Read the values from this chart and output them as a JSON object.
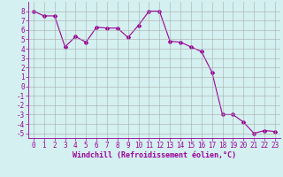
{
  "x": [
    0,
    1,
    2,
    3,
    4,
    5,
    6,
    7,
    8,
    9,
    10,
    11,
    12,
    13,
    14,
    15,
    16,
    17,
    18,
    19,
    20,
    21,
    22,
    23
  ],
  "y": [
    8.0,
    7.5,
    7.5,
    4.2,
    5.3,
    4.7,
    6.3,
    6.2,
    6.2,
    5.2,
    6.5,
    8.0,
    8.0,
    4.8,
    4.7,
    4.2,
    3.7,
    1.5,
    -3.0,
    -3.0,
    -3.8,
    -5.0,
    -4.7,
    -4.8
  ],
  "line_color": "#990099",
  "marker": "D",
  "marker_size": 2,
  "bg_color": "#d4f0f0",
  "grid_color": "#aaaaaa",
  "xlabel": "Windchill (Refroidissement éolien,°C)",
  "xlabel_fontsize": 6.0,
  "tick_fontsize": 5.5,
  "ylim": [
    -5.5,
    9.0
  ],
  "xlim": [
    -0.5,
    23.5
  ],
  "yticks": [
    -5,
    -4,
    -3,
    -2,
    -1,
    0,
    1,
    2,
    3,
    4,
    5,
    6,
    7,
    8
  ],
  "xticks": [
    0,
    1,
    2,
    3,
    4,
    5,
    6,
    7,
    8,
    9,
    10,
    11,
    12,
    13,
    14,
    15,
    16,
    17,
    18,
    19,
    20,
    21,
    22,
    23
  ]
}
